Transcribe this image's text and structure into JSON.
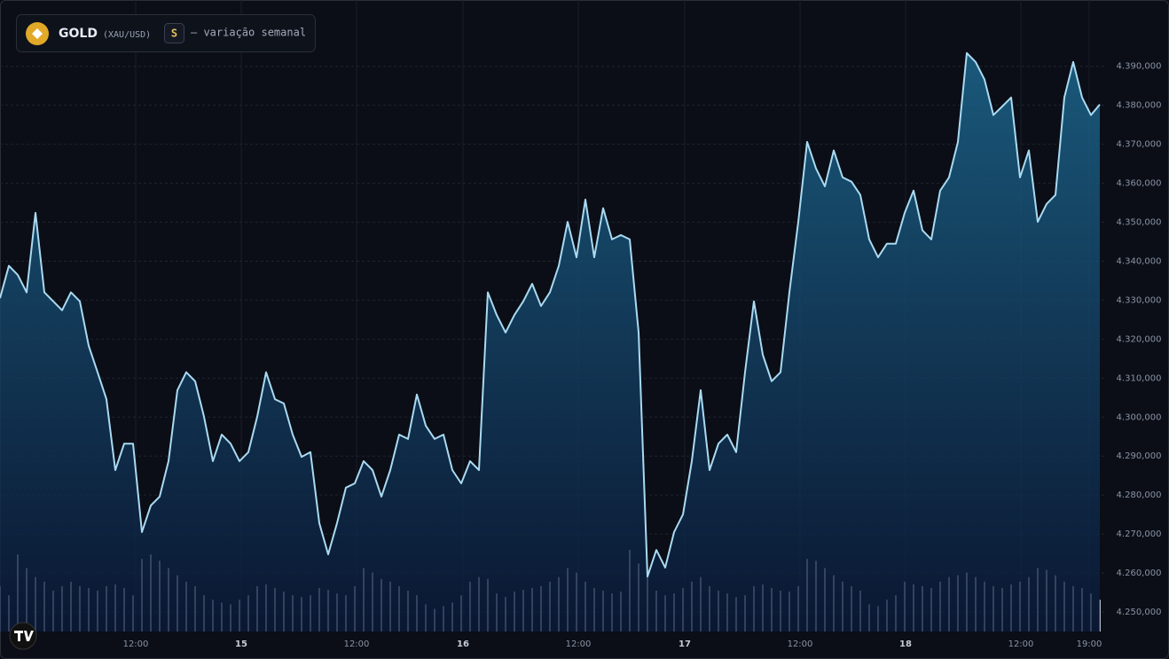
{
  "chart_data": {
    "type": "area",
    "title": "GOLD",
    "symbol": "(XAU/USD)",
    "interval": "S",
    "subtitle": "— variação semanal",
    "color": "#a9daf2",
    "volume_color": "#d0d8e6",
    "grid": true,
    "ylim": [
      4245000,
      4407000
    ],
    "yticks": [
      {
        "value": 4250000,
        "label": "4.250,000"
      },
      {
        "value": 4260000,
        "label": "4.260,000"
      },
      {
        "value": 4270000,
        "label": "4.270,000"
      },
      {
        "value": 4280000,
        "label": "4.280,000"
      },
      {
        "value": 4290000,
        "label": "4.290,000"
      },
      {
        "value": 4300000,
        "label": "4.300,000"
      },
      {
        "value": 4310000,
        "label": "4.310,000"
      },
      {
        "value": 4320000,
        "label": "4.320,000"
      },
      {
        "value": 4330000,
        "label": "4.330,000"
      },
      {
        "value": 4340000,
        "label": "4.340,000"
      },
      {
        "value": 4350000,
        "label": "4.350,000"
      },
      {
        "value": 4360000,
        "label": "4.360,000"
      },
      {
        "value": 4370000,
        "label": "4.370,000"
      },
      {
        "value": 4380000,
        "label": "4.380,000"
      },
      {
        "value": 4390000,
        "label": "4.390,000"
      }
    ],
    "xlim": [
      0,
      124.6
    ],
    "xticks": [
      {
        "value": 15.3,
        "label": "12:00"
      },
      {
        "value": 27.2,
        "label": "15"
      },
      {
        "value": 40.2,
        "label": "12:00"
      },
      {
        "value": 52.2,
        "label": "16"
      },
      {
        "value": 65.2,
        "label": "12:00"
      },
      {
        "value": 77.2,
        "label": "17"
      },
      {
        "value": 90.2,
        "label": "12:00"
      },
      {
        "value": 102.1,
        "label": "18"
      },
      {
        "value": 115.1,
        "label": "12:00"
      },
      {
        "value": 122.8,
        "label": "19:00"
      }
    ],
    "values": [
      4330500,
      4338800,
      4336500,
      4332000,
      4352400,
      4332000,
      4329700,
      4327400,
      4332000,
      4329700,
      4318300,
      4311500,
      4304600,
      4286400,
      4293200,
      4293200,
      4270500,
      4277300,
      4279600,
      4288700,
      4306900,
      4311500,
      4309200,
      4300100,
      4288700,
      4295500,
      4293200,
      4288700,
      4291000,
      4300100,
      4311500,
      4304600,
      4303500,
      4295500,
      4289800,
      4291000,
      4272800,
      4264800,
      4272800,
      4281900,
      4283000,
      4288700,
      4286400,
      4279600,
      4286400,
      4295500,
      4294400,
      4305800,
      4297800,
      4294400,
      4295500,
      4286400,
      4283000,
      4288700,
      4286400,
      4332000,
      4326200,
      4321700,
      4326200,
      4329700,
      4334200,
      4328500,
      4332000,
      4338800,
      4350100,
      4341000,
      4355800,
      4341000,
      4353600,
      4345600,
      4346700,
      4345600,
      4321700,
      4259100,
      4265900,
      4261400,
      4270500,
      4275000,
      4288700,
      4306900,
      4286400,
      4293200,
      4295500,
      4291000,
      4311500,
      4329700,
      4316000,
      4309200,
      4311500,
      4332000,
      4350100,
      4370600,
      4363800,
      4359200,
      4368400,
      4361500,
      4360400,
      4357000,
      4345600,
      4341000,
      4344500,
      4344500,
      4352400,
      4358100,
      4347900,
      4345600,
      4358100,
      4361500,
      4370600,
      4393400,
      4391100,
      4386600,
      4377500,
      4379700,
      4382000,
      4361500,
      4368400,
      4350100,
      4354700,
      4357000,
      4382000,
      4391100,
      4382000,
      4377500,
      4380200
    ],
    "volume": [
      50,
      40,
      85,
      70,
      60,
      55,
      45,
      50,
      55,
      50,
      48,
      45,
      50,
      52,
      48,
      40,
      80,
      85,
      78,
      70,
      62,
      55,
      50,
      40,
      35,
      32,
      30,
      35,
      40,
      50,
      52,
      48,
      44,
      40,
      38,
      40,
      48,
      46,
      42,
      40,
      50,
      70,
      65,
      58,
      55,
      50,
      45,
      40,
      30,
      25,
      28,
      32,
      40,
      55,
      60,
      58,
      42,
      38,
      44,
      46,
      48,
      50,
      55,
      60,
      70,
      65,
      55,
      48,
      45,
      42,
      44,
      90,
      75,
      60,
      45,
      40,
      42,
      48,
      55,
      60,
      50,
      45,
      42,
      38,
      40,
      50,
      52,
      48,
      45,
      44,
      50,
      80,
      78,
      70,
      62,
      55,
      50,
      45,
      30,
      28,
      35,
      40,
      55,
      52,
      50,
      48,
      55,
      60,
      62,
      65,
      60,
      55,
      50,
      48,
      52,
      55,
      60,
      70,
      68,
      62,
      55,
      50,
      48,
      42,
      35
    ]
  }
}
